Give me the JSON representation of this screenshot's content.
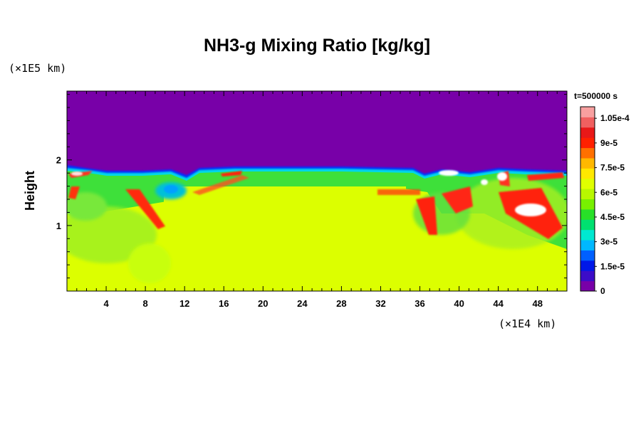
{
  "chart_data": {
    "type": "heatmap",
    "title": "NH3-g Mixing Ratio [kg/kg]",
    "ylabel": "Height",
    "x_unit_label": "(×1E4 km)",
    "y_unit_label": "(×1E5 km)",
    "time_label": "t=500000 s",
    "xlim": [
      0,
      51
    ],
    "ylim": [
      0,
      3.05
    ],
    "x_ticks": [
      4,
      8,
      12,
      16,
      20,
      24,
      28,
      32,
      36,
      40,
      44,
      48
    ],
    "x_tick_labels": [
      "4",
      "8",
      "12",
      "16",
      "20",
      "24",
      "28",
      "32",
      "36",
      "40",
      "44",
      "48"
    ],
    "y_ticks": [
      1,
      2
    ],
    "y_tick_labels": [
      "1",
      "2"
    ],
    "colorbar": {
      "vmin": 0,
      "vmax": 0.000112,
      "ticks": [
        0,
        1.5e-05,
        3e-05,
        4.5e-05,
        6e-05,
        7.5e-05,
        9e-05,
        0.000105
      ],
      "tick_labels": [
        "0",
        "1.5e-5",
        "3e-5",
        "4.5e-5",
        "6e-5",
        "7.5e-5",
        "9e-5",
        "1.05e-4"
      ],
      "colors": [
        "#7800a8",
        "#3c0cc8",
        "#0018e8",
        "#0060ff",
        "#00b8ff",
        "#00e8d0",
        "#00e070",
        "#28e028",
        "#78f000",
        "#b8f800",
        "#e0ff00",
        "#ffe800",
        "#ffb800",
        "#ff7000",
        "#ff2000",
        "#e81818",
        "#f06060",
        "#f8a0a0"
      ]
    },
    "field_description": {
      "upper_region_value": 0,
      "lower_region_value_approx": 7.8e-05,
      "boundary_height_approx": 1.8
    }
  }
}
